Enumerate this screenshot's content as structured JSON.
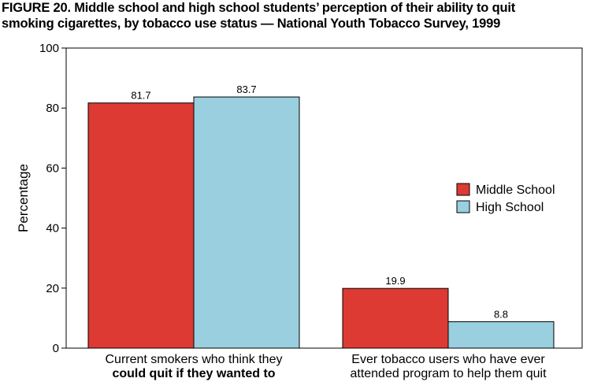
{
  "title_lines": [
    "FIGURE 20. Middle school and high school students’ perception of their ability to quit",
    "smoking cigarettes, by tobacco use status — National Youth Tobacco Survey, 1999"
  ],
  "chart_data": {
    "type": "bar",
    "title": "FIGURE 20. Middle school and high school students’ perception of their ability to quit smoking cigarettes, by tobacco use status — National Youth Tobacco Survey, 1999",
    "ylabel": "Percentage",
    "xlabel": "",
    "ylim": [
      0,
      100
    ],
    "yticks": [
      0,
      20,
      40,
      60,
      80,
      100
    ],
    "grid": false,
    "legend_position": "right",
    "categories": [
      {
        "label_lines": [
          {
            "text": "Current smokers who think they",
            "bold": false
          },
          {
            "text": "could quit if they wanted to",
            "bold": true
          }
        ]
      },
      {
        "label_lines": [
          {
            "text": "Ever  tobacco users who have ever",
            "bold": false
          },
          {
            "text": "attended program to help them quit",
            "bold": false
          }
        ]
      }
    ],
    "series": [
      {
        "name": "Middle School",
        "color": "#dc3a33",
        "values": [
          81.7,
          19.9
        ],
        "labels": [
          "81.7",
          "19.9"
        ]
      },
      {
        "name": "High School",
        "color": "#99cfde",
        "values": [
          83.7,
          8.8
        ],
        "labels": [
          "83.7",
          "8.8"
        ]
      }
    ]
  }
}
